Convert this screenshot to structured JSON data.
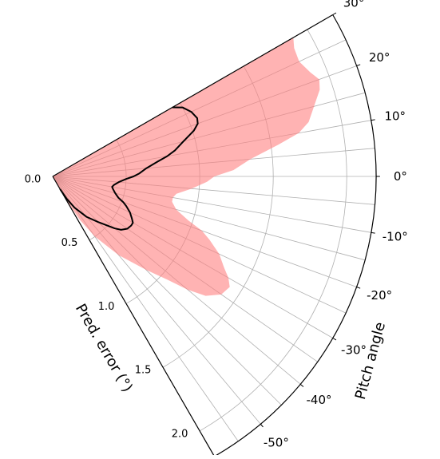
{
  "chart_data": {
    "type": "polar-area",
    "ylabel": "Pitch angle",
    "xlabel": "Pred. error ($^\\circ$)",
    "xlabel_display": "Pred. error (°)",
    "theta_range_deg": [
      -60,
      30
    ],
    "theta_ticks": [
      "30°",
      "20°",
      "10°",
      "0°",
      "-10°",
      "-20°",
      "-30°",
      "-40°",
      "-50°"
    ],
    "theta_tick_values": [
      30,
      20,
      10,
      0,
      -10,
      -20,
      -30,
      -40,
      -50
    ],
    "r_range": [
      0,
      2.2
    ],
    "r_ticks": [
      "0.0",
      "0.5",
      "1.0",
      "1.5",
      "2.0"
    ],
    "r_tick_values": [
      0.0,
      0.5,
      1.0,
      1.5,
      2.0
    ],
    "grid": true,
    "band": {
      "color": "#ff8080",
      "theta": [
        30,
        28,
        25,
        22,
        20,
        18,
        15,
        12,
        10,
        8,
        5,
        2,
        0,
        -2,
        -5,
        -8,
        -10,
        -12,
        -15,
        -18,
        -20,
        -22,
        -25,
        -28,
        -30,
        -32,
        -35,
        -38,
        -40,
        -42,
        -45,
        -50,
        -55,
        -58,
        -60
      ],
      "r": [
        1.89,
        1.86,
        1.85,
        1.89,
        1.93,
        1.91,
        1.84,
        1.78,
        1.7,
        1.55,
        1.35,
        1.23,
        1.1,
        1.05,
        0.95,
        0.85,
        0.83,
        0.83,
        0.87,
        0.97,
        1.08,
        1.15,
        1.25,
        1.32,
        1.38,
        1.42,
        1.4,
        1.32,
        1.2,
        1.05,
        0.9,
        0.7,
        0.5,
        0.35,
        0.2
      ]
    },
    "median_line": {
      "color": "#000000",
      "theta": [
        30,
        28,
        25,
        22,
        20,
        18,
        15,
        12,
        10,
        8,
        5,
        2,
        0,
        -2,
        -5,
        -8,
        -10,
        -12,
        -15,
        -18,
        -20,
        -22,
        -25,
        -28,
        -30,
        -32,
        -35,
        -38,
        -40,
        -42,
        -45,
        -50,
        -55,
        -58,
        -60
      ],
      "r": [
        0.94,
        1.0,
        1.04,
        1.06,
        1.05,
        1.01,
        0.92,
        0.85,
        0.79,
        0.72,
        0.64,
        0.59,
        0.55,
        0.5,
        0.45,
        0.42,
        0.41,
        0.42,
        0.44,
        0.47,
        0.51,
        0.54,
        0.58,
        0.61,
        0.63,
        0.63,
        0.62,
        0.59,
        0.55,
        0.5,
        0.44,
        0.36,
        0.26,
        0.18,
        0.1
      ]
    }
  }
}
